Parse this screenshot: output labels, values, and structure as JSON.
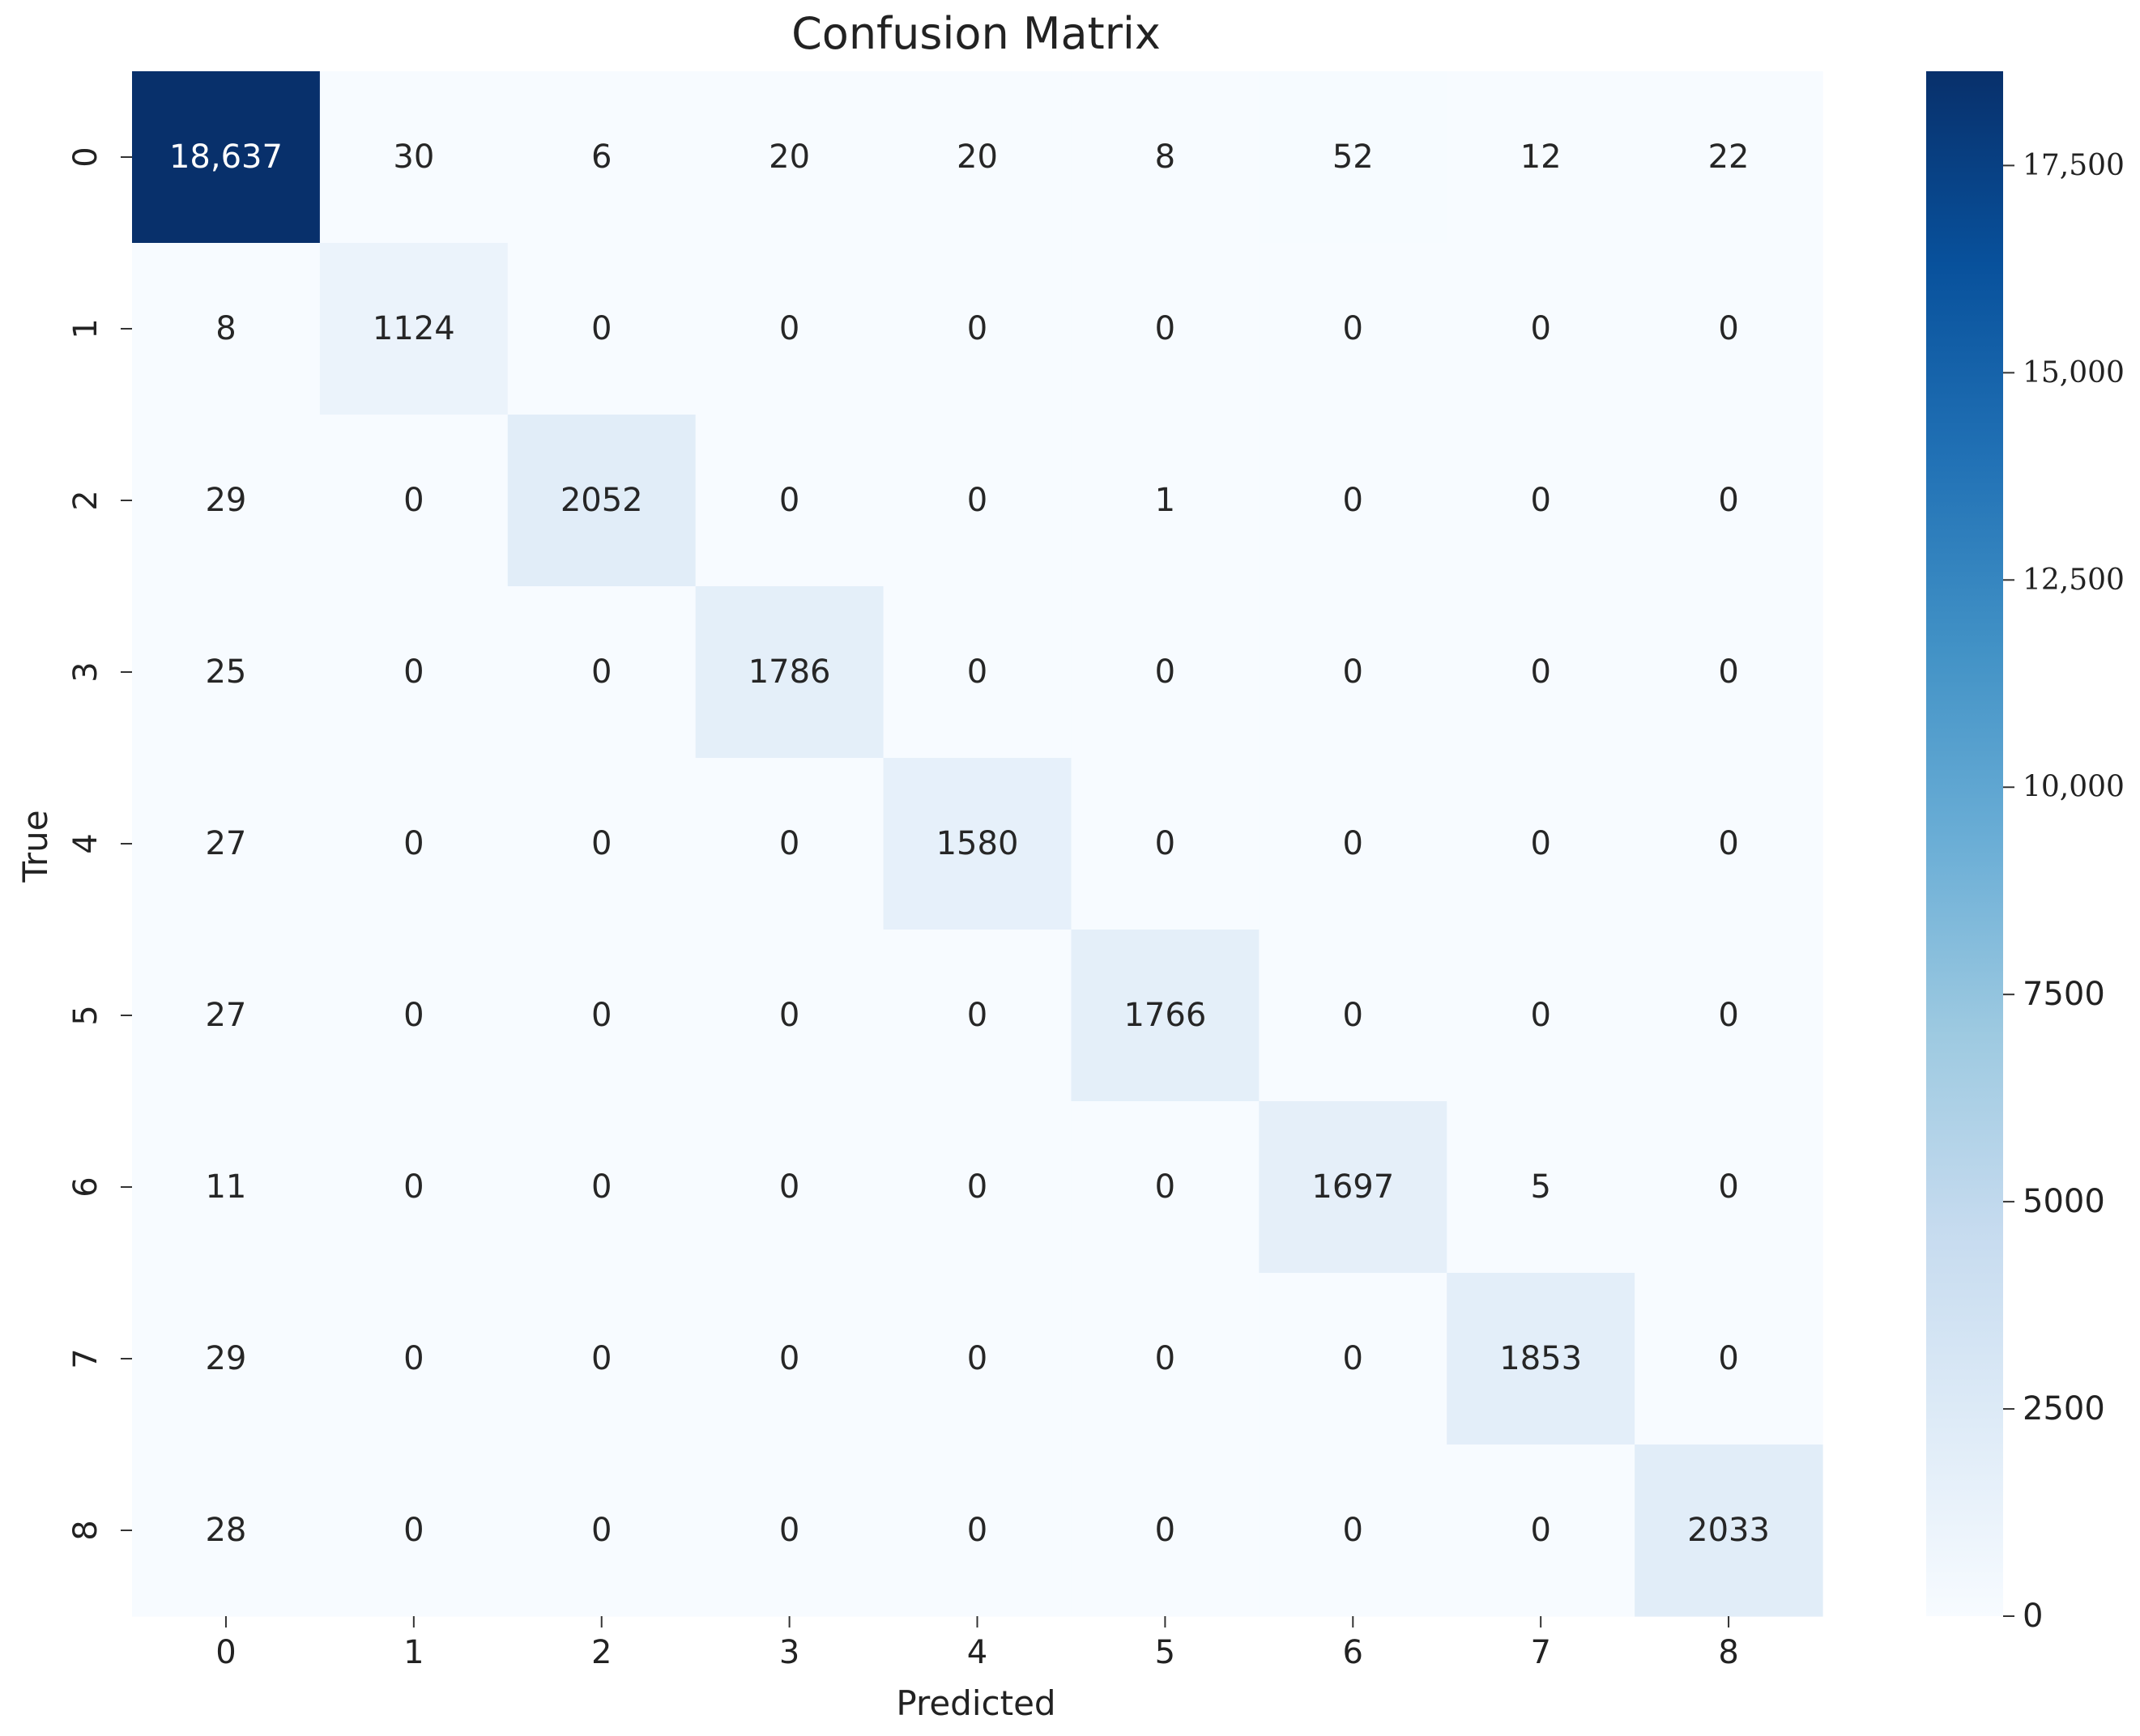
{
  "chart_data": {
    "type": "heatmap",
    "title": "Confusion Matrix",
    "xlabel": "Predicted",
    "ylabel": "True",
    "x_categories": [
      "0",
      "1",
      "2",
      "3",
      "4",
      "5",
      "6",
      "7",
      "8"
    ],
    "y_categories": [
      "0",
      "1",
      "2",
      "3",
      "4",
      "5",
      "6",
      "7",
      "8"
    ],
    "values": [
      [
        18637,
        30,
        6,
        20,
        20,
        8,
        52,
        12,
        22
      ],
      [
        8,
        1124,
        0,
        0,
        0,
        0,
        0,
        0,
        0
      ],
      [
        29,
        0,
        2052,
        0,
        0,
        1,
        0,
        0,
        0
      ],
      [
        25,
        0,
        0,
        1786,
        0,
        0,
        0,
        0,
        0
      ],
      [
        27,
        0,
        0,
        0,
        1580,
        0,
        0,
        0,
        0
      ],
      [
        27,
        0,
        0,
        0,
        0,
        1766,
        0,
        0,
        0
      ],
      [
        11,
        0,
        0,
        0,
        0,
        0,
        1697,
        5,
        0
      ],
      [
        29,
        0,
        0,
        0,
        0,
        0,
        0,
        1853,
        0
      ],
      [
        28,
        0,
        0,
        0,
        0,
        0,
        0,
        0,
        2033
      ]
    ],
    "cell_labels": [
      [
        "18,637",
        "30",
        "6",
        "20",
        "20",
        "8",
        "52",
        "12",
        "22"
      ],
      [
        "8",
        "1124",
        "0",
        "0",
        "0",
        "0",
        "0",
        "0",
        "0"
      ],
      [
        "29",
        "0",
        "2052",
        "0",
        "0",
        "1",
        "0",
        "0",
        "0"
      ],
      [
        "25",
        "0",
        "0",
        "1786",
        "0",
        "0",
        "0",
        "0",
        "0"
      ],
      [
        "27",
        "0",
        "0",
        "0",
        "1580",
        "0",
        "0",
        "0",
        "0"
      ],
      [
        "27",
        "0",
        "0",
        "0",
        "0",
        "1766",
        "0",
        "0",
        "0"
      ],
      [
        "11",
        "0",
        "0",
        "0",
        "0",
        "0",
        "1697",
        "5",
        "0"
      ],
      [
        "29",
        "0",
        "0",
        "0",
        "0",
        "0",
        "0",
        "1853",
        "0"
      ],
      [
        "28",
        "0",
        "0",
        "0",
        "0",
        "0",
        "0",
        "0",
        "2033"
      ]
    ],
    "colormap": "Blues",
    "colorbar": {
      "range": [
        0,
        18637
      ],
      "ticks": [
        0,
        2500,
        5000,
        7500,
        10000,
        12500,
        15000,
        17500
      ],
      "tick_labels": [
        "0",
        "2500",
        "5000",
        "7500",
        "10,000",
        "12,500",
        "15,000",
        "17,500"
      ]
    }
  }
}
